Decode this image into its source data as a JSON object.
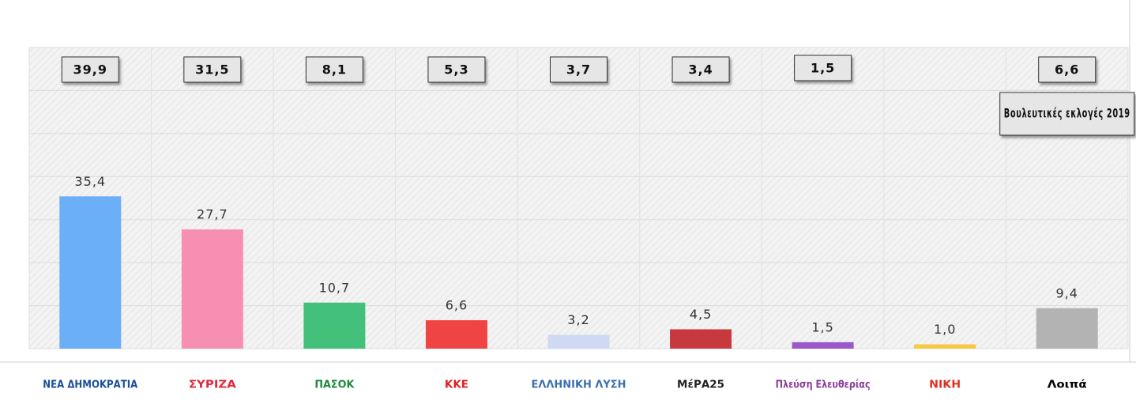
{
  "chart_data": {
    "type": "bar",
    "categories": [
      "ΝΕΑ ΔΗΜΟΚΡΑΤΙΑ",
      "ΣΥΡΙΖΑ",
      "ΠΑΣΟΚ",
      "ΚΚΕ",
      "ΕΛΛΗΝΙΚΗ ΛΥΣΗ",
      "ΜέΡΑ25",
      "Πλεύση Ελευθερίας",
      "ΝΙΚΗ",
      "Λοιπά"
    ],
    "category_colors": [
      "#1a4f9c",
      "#e0283a",
      "#1a8a3a",
      "#e02020",
      "#3a6fb0",
      "#222222",
      "#8a3a9a",
      "#e03020",
      "#000000"
    ],
    "series": [
      {
        "values": [
          35.4,
          27.7,
          10.7,
          6.6,
          3.2,
          4.5,
          1.5,
          1.0,
          9.4
        ],
        "value_labels": [
          "35,4",
          "27,7",
          "10,7",
          "6,6",
          "3,2",
          "4,5",
          "1,5",
          "1,0",
          "9,4"
        ],
        "colors": [
          "#6aaff7",
          "#f78fb3",
          "#43c07a",
          "#f04444",
          "#cfd9f2",
          "#c8393f",
          "#9b59c8",
          "#f6c945",
          "#b3b3b3"
        ]
      },
      {
        "name": "Βουλευτικές εκλογές 2019",
        "color": "#e6e6e6",
        "values": [
          39.9,
          31.5,
          8.1,
          5.3,
          3.7,
          3.4,
          1.5,
          null,
          6.6
        ],
        "value_labels": [
          "39,9",
          "31,5",
          "8,1",
          "5,3",
          "3,7",
          "3,4",
          "1,5",
          null,
          "6,6"
        ]
      }
    ],
    "ylim": [
      0,
      70
    ],
    "yticks": [
      0,
      10,
      20,
      30,
      40,
      50,
      60,
      70
    ],
    "grid": true
  }
}
